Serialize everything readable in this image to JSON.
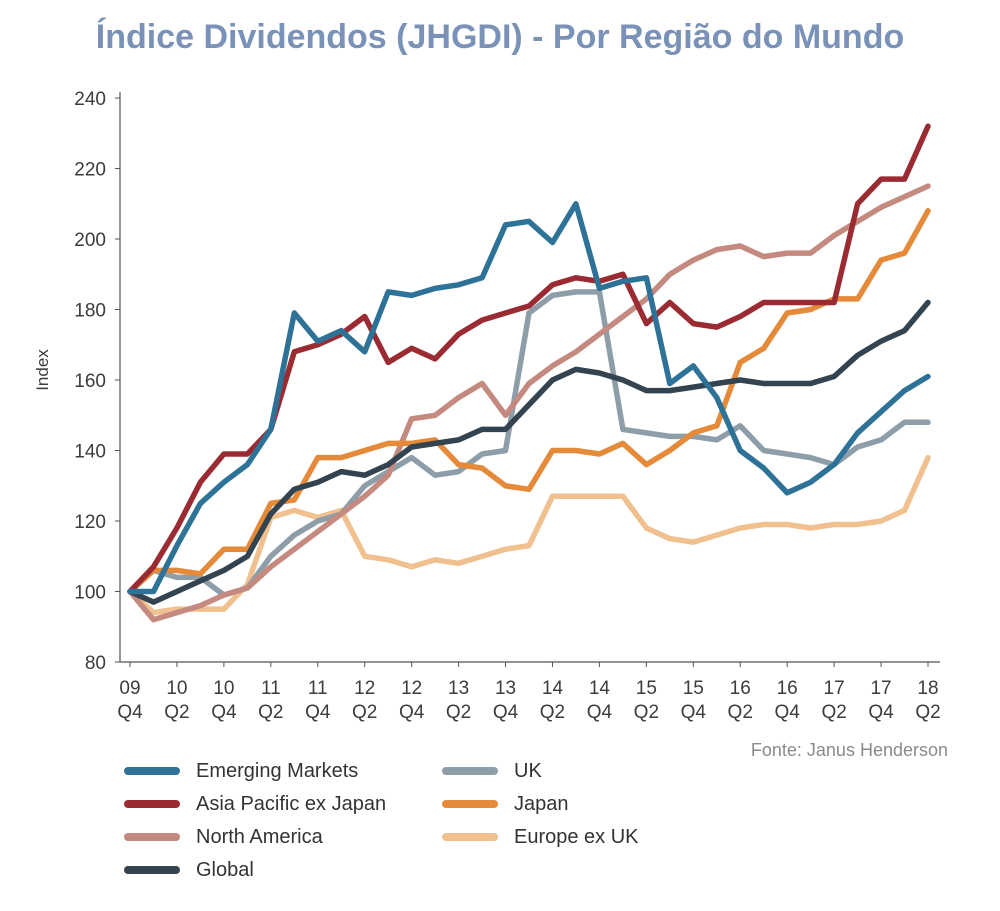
{
  "source_text": "Fonte: Janus Henderson",
  "chart_data": {
    "type": "line",
    "title": "Índice Dividendos (JHGDI) - Por Região do Mundo",
    "ylabel": "Index",
    "xlabel": "",
    "ylim": [
      80,
      240
    ],
    "yticks": [
      "80",
      "100",
      "120",
      "140",
      "160",
      "180",
      "200",
      "220",
      "240"
    ],
    "x_labels": [
      {
        "year": "09",
        "q": "Q4"
      },
      {
        "year": "10",
        "q": "Q2"
      },
      {
        "year": "10",
        "q": "Q4"
      },
      {
        "year": "11",
        "q": "Q2"
      },
      {
        "year": "11",
        "q": "Q4"
      },
      {
        "year": "12",
        "q": "Q2"
      },
      {
        "year": "12",
        "q": "Q4"
      },
      {
        "year": "13",
        "q": "Q2"
      },
      {
        "year": "13",
        "q": "Q4"
      },
      {
        "year": "14",
        "q": "Q2"
      },
      {
        "year": "14",
        "q": "Q4"
      },
      {
        "year": "15",
        "q": "Q2"
      },
      {
        "year": "15",
        "q": "Q4"
      },
      {
        "year": "16",
        "q": "Q2"
      },
      {
        "year": "16",
        "q": "Q4"
      },
      {
        "year": "17",
        "q": "Q2"
      },
      {
        "year": "17",
        "q": "Q4"
      },
      {
        "year": "18",
        "q": "Q2"
      }
    ],
    "grid": false,
    "legend_position": "bottom",
    "series": [
      {
        "name": "Emerging Markets",
        "color": "#2e7397",
        "values": [
          100,
          100,
          113,
          125,
          131,
          136,
          146,
          179,
          171,
          174,
          168,
          185,
          184,
          186,
          187,
          189,
          204,
          205,
          199,
          210,
          186,
          188,
          189,
          159,
          164,
          155,
          140,
          135,
          128,
          131,
          136,
          145,
          151,
          157,
          161
        ]
      },
      {
        "name": "Asia Pacific ex Japan",
        "color": "#9b2b33",
        "values": [
          100,
          107,
          118,
          131,
          139,
          139,
          146,
          168,
          170,
          173,
          178,
          165,
          169,
          166,
          173,
          177,
          179,
          181,
          187,
          189,
          188,
          190,
          176,
          182,
          176,
          175,
          178,
          182,
          182,
          182,
          182,
          210,
          217,
          217,
          232
        ]
      },
      {
        "name": "North America",
        "color": "#c48a80",
        "values": [
          100,
          92,
          94,
          96,
          99,
          101,
          107,
          112,
          117,
          122,
          127,
          133,
          149,
          150,
          155,
          159,
          150,
          159,
          164,
          168,
          173,
          178,
          183,
          190,
          194,
          197,
          198,
          195,
          196,
          196,
          201,
          205,
          209,
          212,
          215
        ]
      },
      {
        "name": "Global",
        "color": "#33434f",
        "values": [
          100,
          97,
          100,
          103,
          106,
          110,
          122,
          129,
          131,
          134,
          133,
          136,
          141,
          142,
          143,
          146,
          146,
          153,
          160,
          163,
          162,
          160,
          157,
          157,
          158,
          159,
          160,
          159,
          159,
          159,
          161,
          167,
          171,
          174,
          182
        ]
      },
      {
        "name": "UK",
        "color": "#8e9ea9",
        "values": [
          100,
          106,
          104,
          104,
          99,
          101,
          110,
          116,
          120,
          122,
          130,
          134,
          138,
          133,
          134,
          139,
          140,
          179,
          184,
          185,
          185,
          146,
          145,
          144,
          144,
          143,
          147,
          140,
          139,
          138,
          136,
          141,
          143,
          148,
          148
        ]
      },
      {
        "name": "Japan",
        "color": "#e58a39",
        "values": [
          100,
          106,
          106,
          105,
          112,
          112,
          125,
          126,
          138,
          138,
          140,
          142,
          142,
          143,
          136,
          135,
          130,
          129,
          140,
          140,
          139,
          142,
          136,
          140,
          145,
          147,
          165,
          169,
          179,
          180,
          183,
          183,
          194,
          196,
          208
        ]
      },
      {
        "name": "Europe ex UK",
        "color": "#f0c08f",
        "values": [
          100,
          94,
          95,
          95,
          95,
          102,
          121,
          123,
          121,
          123,
          110,
          109,
          107,
          109,
          108,
          110,
          112,
          113,
          127,
          127,
          127,
          127,
          118,
          115,
          114,
          116,
          118,
          119,
          119,
          118,
          119,
          119,
          120,
          123,
          138
        ]
      }
    ]
  }
}
